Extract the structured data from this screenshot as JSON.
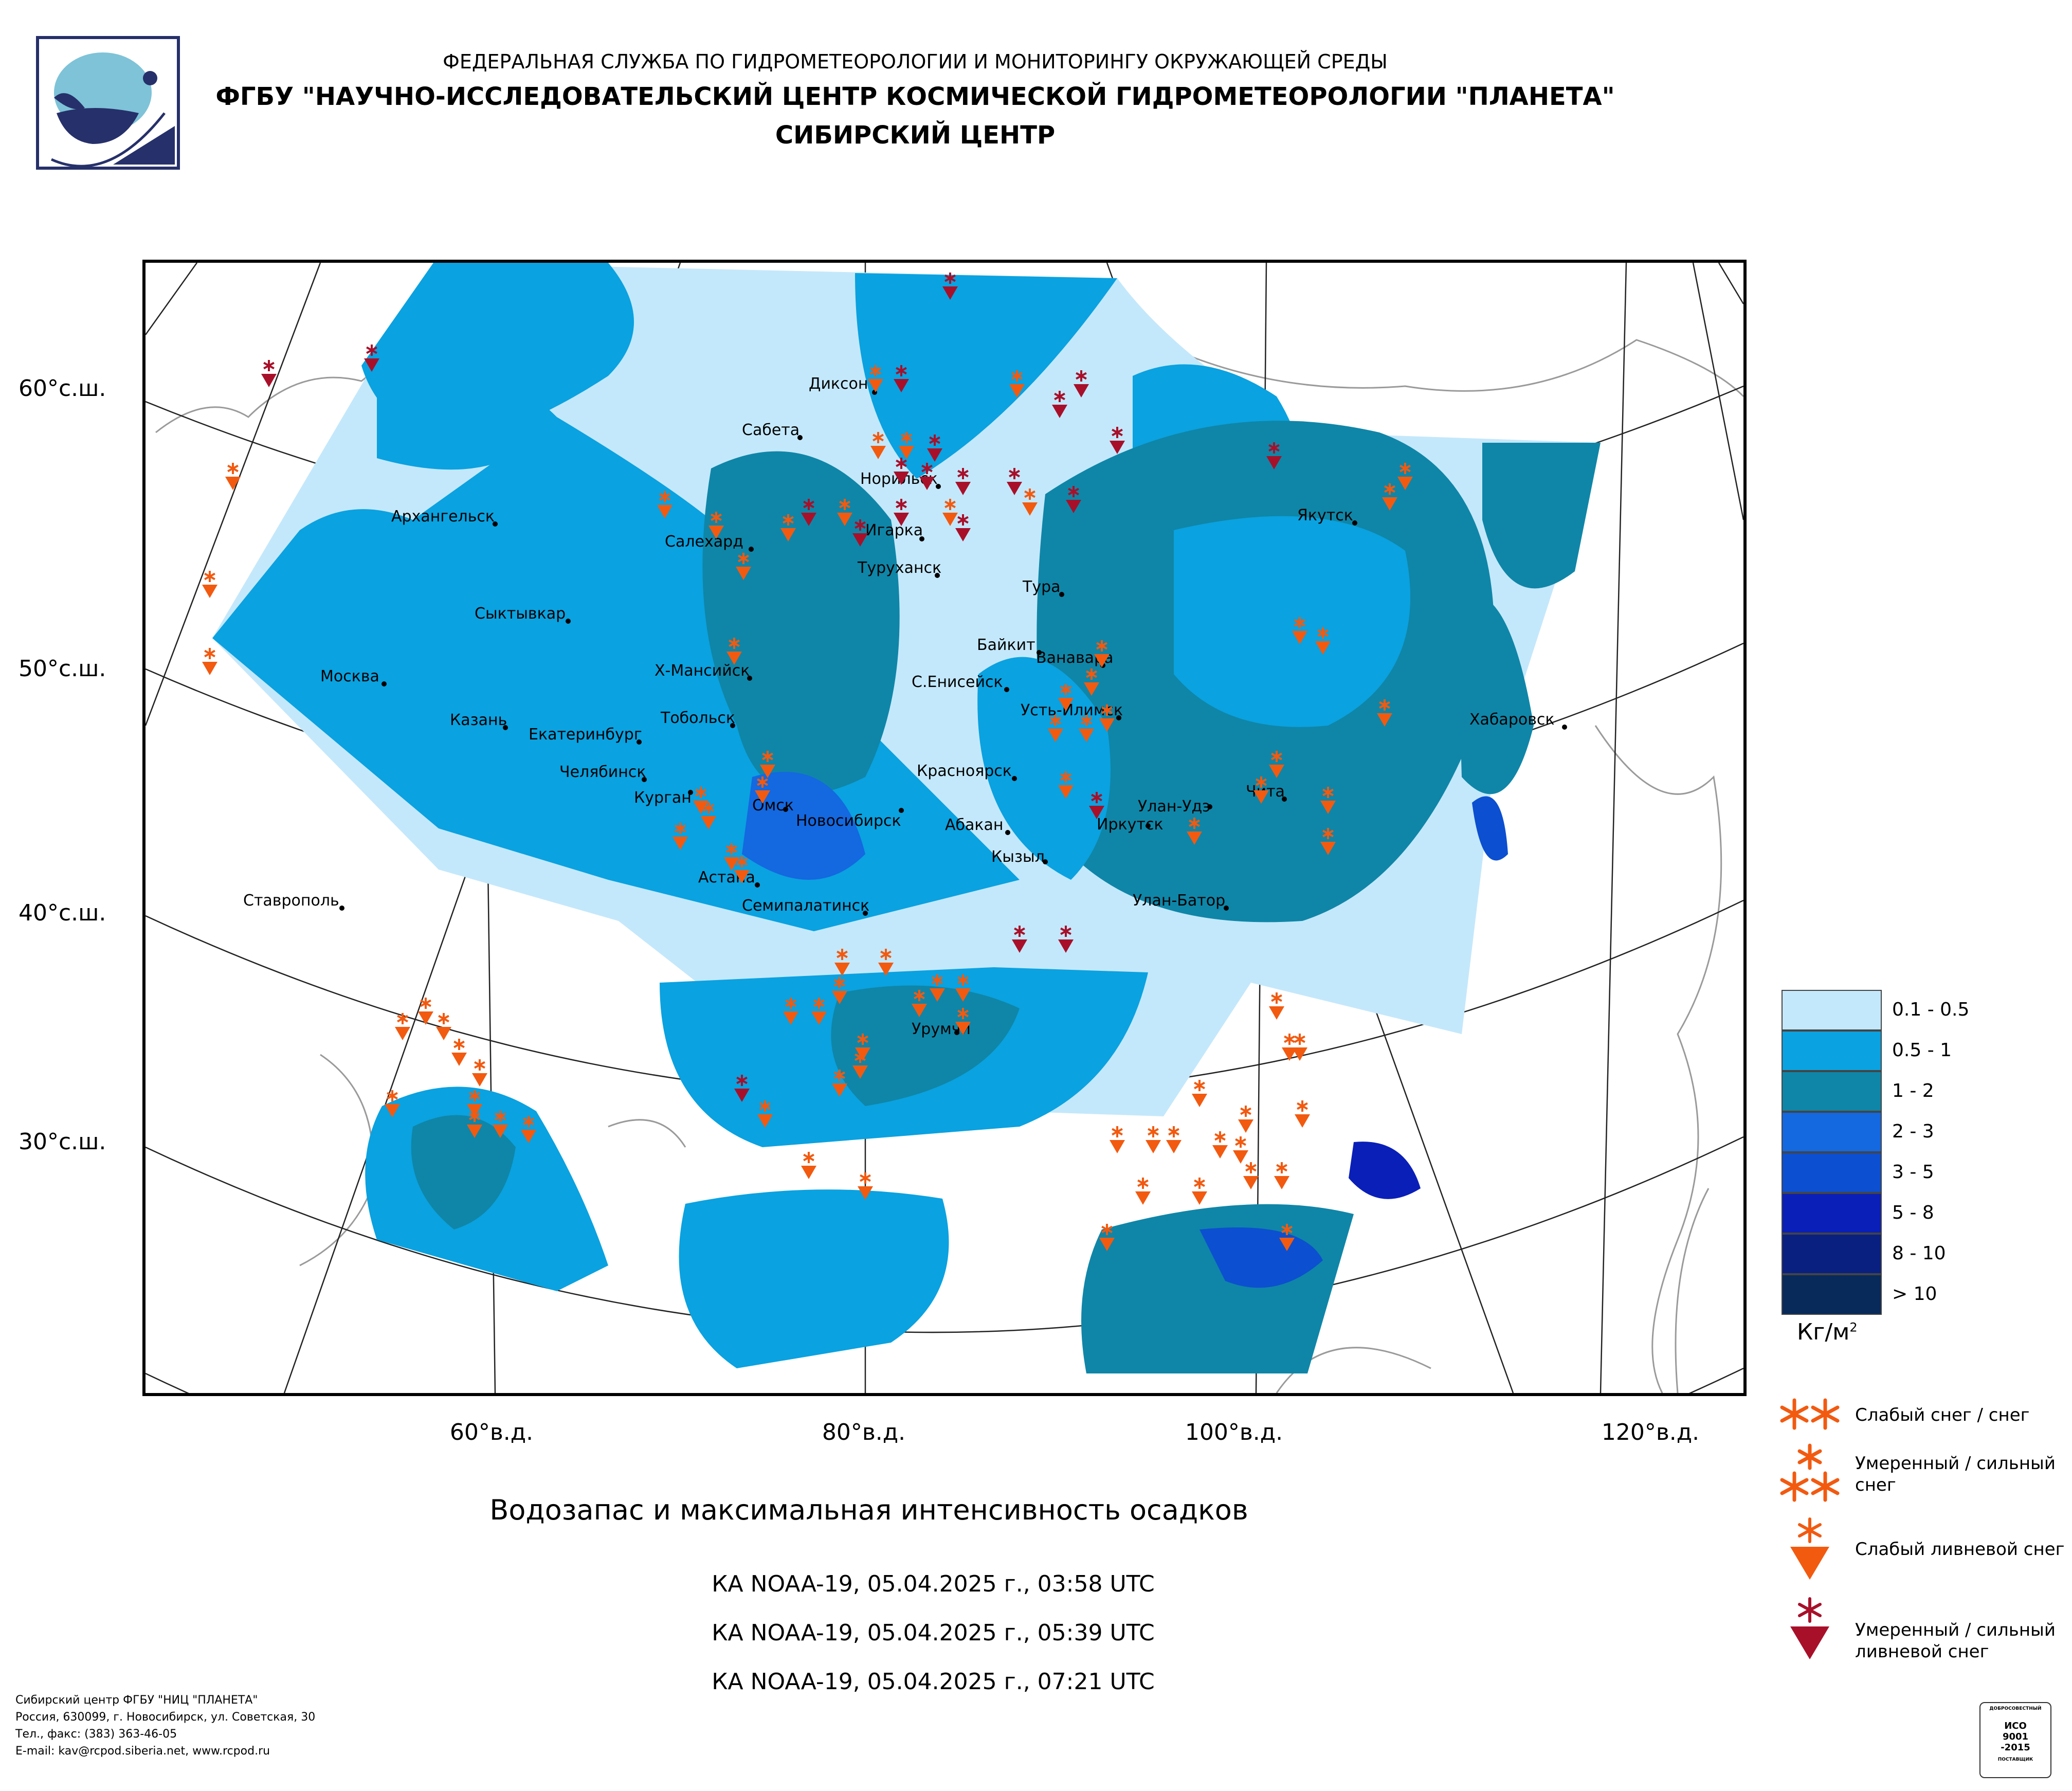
{
  "header": {
    "line1": "ФЕДЕРАЛЬНАЯ СЛУЖБА ПО ГИДРОМЕТЕОРОЛОГИИ И МОНИТОРИНГУ ОКРУЖАЮЩЕЙ СРЕДЫ",
    "line2": "ФГБУ \"НАУЧНО-ИССЛЕДОВАТЕЛЬСКИЙ ЦЕНТР КОСМИЧЕСКОЙ ГИДРОМЕТЕОРОЛОГИИ \"ПЛАНЕТА\"",
    "line3": "СИБИРСКИЙ ЦЕНТР"
  },
  "lat_labels": [
    "60°с.ш.",
    "50°с.ш.",
    "40°с.ш.",
    "30°с.ш."
  ],
  "lon_labels": [
    "60°в.д.",
    "80°в.д.",
    "100°в.д.",
    "120°в.д."
  ],
  "cities": [
    {
      "name": "Диксон"
    },
    {
      "name": "Сабета"
    },
    {
      "name": "Норильск"
    },
    {
      "name": "Игарка"
    },
    {
      "name": "Туруханск"
    },
    {
      "name": "Салехард"
    },
    {
      "name": "Архангельск"
    },
    {
      "name": "Сыктывкар"
    },
    {
      "name": "Москва"
    },
    {
      "name": "Казань"
    },
    {
      "name": "Екатеринбург"
    },
    {
      "name": "Тобольск"
    },
    {
      "name": "Х-Мансийск"
    },
    {
      "name": "Челябинск"
    },
    {
      "name": "Курган"
    },
    {
      "name": "Омск"
    },
    {
      "name": "Новосибирск"
    },
    {
      "name": "Астана"
    },
    {
      "name": "Семипалатинск"
    },
    {
      "name": "Ставрополь"
    },
    {
      "name": "Красноярск"
    },
    {
      "name": "Абакан"
    },
    {
      "name": "Кызыл"
    },
    {
      "name": "С.Енисейск"
    },
    {
      "name": "Байкит"
    },
    {
      "name": "Ванавара"
    },
    {
      "name": "Тура"
    },
    {
      "name": "Усть-Илимск"
    },
    {
      "name": "Иркутск"
    },
    {
      "name": "Улан-Удэ"
    },
    {
      "name": "Улан-Батор"
    },
    {
      "name": "Чита"
    },
    {
      "name": "Якутск"
    },
    {
      "name": "Хабаровск"
    },
    {
      "name": "Урумчи"
    }
  ],
  "legend": {
    "classes": [
      {
        "label": "0.1 - 0.5",
        "color": "#c4e8fb"
      },
      {
        "label": "0.5 - 1",
        "color": "#0aa2e0"
      },
      {
        "label": "1 - 2",
        "color": "#0f86a8"
      },
      {
        "label": "2 - 3",
        "color": "#1468e0"
      },
      {
        "label": "3 - 5",
        "color": "#0c4fd0"
      },
      {
        "label": "5 - 8",
        "color": "#0a1fb8"
      },
      {
        "label": "8 - 10",
        "color": "#0a2080"
      },
      {
        "label": "> 10",
        "color": "#082a5a"
      }
    ],
    "unit": "Кг/м",
    "unit_sup": "2"
  },
  "symbol_legend": [
    {
      "label": "Слабый снег / снег",
      "color": "#f25a10"
    },
    {
      "label": "Умеренный / сильный снег",
      "color": "#f25a10"
    },
    {
      "label": "Слабый ливневой снег",
      "color": "#f25a10"
    },
    {
      "label": "Умеренный / сильный ливневой снег",
      "color": "#a8102a"
    }
  ],
  "title": "Водозапас и максимальная интенсивность осадков",
  "passes": [
    "КА NOAA-19, 05.04.2025 г., 03:58 UTC",
    "КА NOAA-19, 05.04.2025 г., 05:39 UTC",
    "КА NOAA-19, 05.04.2025 г., 07:21 UTC"
  ],
  "footer": {
    "line1": "Сибирский центр ФГБУ \"НИЦ \"ПЛАНЕТА\"",
    "line2": "Россия, 630099, г. Новосибирск, ул. Советская, 30",
    "line3": "Тел., факс: (383) 363-46-05",
    "line4": "E-mail: kav@rcpod.siberia.net, www.rcpod.ru"
  },
  "iso": {
    "top": "ДОБРОСОВЕСТНЫЙ",
    "line1": "ИСО",
    "line2": "9001",
    "line3": "-2015",
    "bottom": "ПОСТАВЩИК"
  }
}
